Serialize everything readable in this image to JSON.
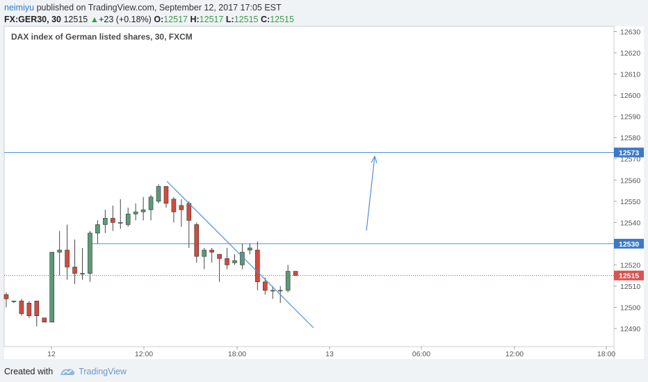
{
  "header": {
    "author": "neimiyu",
    "published_text": "published on TradingView.com, September 12, 2017 17:05 EST",
    "symbol": "FX:GER30, 30",
    "price": "12515",
    "change": "+23 (+0.18%)",
    "o_label": "O:",
    "o_value": "12517",
    "h_label": "H:",
    "h_value": "12517",
    "l_label": "L:",
    "l_value": "12515",
    "c_label": "C:",
    "c_value": "12515"
  },
  "footer": {
    "created_with": "Created with",
    "brand": "TradingView"
  },
  "colors": {
    "up": "#5b9a79",
    "down": "#d24b3e",
    "line": "#4f8fd6",
    "price_line": "#c0392b",
    "axis_text": "#555555"
  },
  "chart_data": {
    "type": "candlestick",
    "title": "DAX index of German listed shares, 30, FXCM",
    "x_ticks": [
      "12",
      "12:00",
      "18:00",
      "13",
      "06:00",
      "12:00",
      "18:00"
    ],
    "ylim": [
      12484,
      12632
    ],
    "y_ticks": [
      12490,
      12500,
      12510,
      12520,
      12530,
      12540,
      12550,
      12560,
      12570,
      12580,
      12590,
      12600,
      12610,
      12620,
      12630
    ],
    "candles": [
      {
        "o": 12506,
        "h": 12507,
        "l": 12500,
        "c": 12504
      },
      {
        "o": 12503,
        "h": 12503,
        "l": 12502,
        "c": 12503
      },
      {
        "o": 12503,
        "h": 12504,
        "l": 12496,
        "c": 12497
      },
      {
        "o": 12502,
        "h": 12503,
        "l": 12495,
        "c": 12496
      },
      {
        "o": 12503,
        "h": 12503,
        "l": 12491,
        "c": 12496
      },
      {
        "o": 12495,
        "h": 12495,
        "l": 12493,
        "c": 12493
      },
      {
        "o": 12493,
        "h": 12526,
        "l": 12493,
        "c": 12526
      },
      {
        "o": 12526,
        "h": 12536,
        "l": 12515,
        "c": 12527
      },
      {
        "o": 12527,
        "h": 12539,
        "l": 12513,
        "c": 12519
      },
      {
        "o": 12519,
        "h": 12532,
        "l": 12511,
        "c": 12516
      },
      {
        "o": 12516,
        "h": 12528,
        "l": 12513,
        "c": 12516
      },
      {
        "o": 12516,
        "h": 12536,
        "l": 12512,
        "c": 12535
      },
      {
        "o": 12535,
        "h": 12541,
        "l": 12530,
        "c": 12539
      },
      {
        "o": 12539,
        "h": 12546,
        "l": 12535,
        "c": 12542
      },
      {
        "o": 12542,
        "h": 12548,
        "l": 12536,
        "c": 12540
      },
      {
        "o": 12540,
        "h": 12551,
        "l": 12537,
        "c": 12540
      },
      {
        "o": 12539,
        "h": 12547,
        "l": 12538,
        "c": 12544
      },
      {
        "o": 12544,
        "h": 12549,
        "l": 12541,
        "c": 12545
      },
      {
        "o": 12545,
        "h": 12552,
        "l": 12541,
        "c": 12546
      },
      {
        "o": 12546,
        "h": 12553,
        "l": 12541,
        "c": 12552
      },
      {
        "o": 12550,
        "h": 12558,
        "l": 12549,
        "c": 12557
      },
      {
        "o": 12557,
        "h": 12557,
        "l": 12547,
        "c": 12549
      },
      {
        "o": 12551,
        "h": 12552,
        "l": 12540,
        "c": 12545
      },
      {
        "o": 12548,
        "h": 12551,
        "l": 12538,
        "c": 12546
      },
      {
        "o": 12549,
        "h": 12550,
        "l": 12528,
        "c": 12541
      },
      {
        "o": 12539,
        "h": 12540,
        "l": 12521,
        "c": 12524
      },
      {
        "o": 12524,
        "h": 12528,
        "l": 12518,
        "c": 12527
      },
      {
        "o": 12527,
        "h": 12528,
        "l": 12521,
        "c": 12526
      },
      {
        "o": 12525,
        "h": 12525,
        "l": 12512,
        "c": 12523
      },
      {
        "o": 12523,
        "h": 12528,
        "l": 12518,
        "c": 12520
      },
      {
        "o": 12521,
        "h": 12525,
        "l": 12520,
        "c": 12522
      },
      {
        "o": 12520,
        "h": 12530,
        "l": 12518,
        "c": 12526
      },
      {
        "o": 12527,
        "h": 12530,
        "l": 12525,
        "c": 12528
      },
      {
        "o": 12527,
        "h": 12531,
        "l": 12508,
        "c": 12512
      },
      {
        "o": 12512,
        "h": 12514,
        "l": 12506,
        "c": 12508
      },
      {
        "o": 12508,
        "h": 12510,
        "l": 12504,
        "c": 12508
      },
      {
        "o": 12508,
        "h": 12510,
        "l": 12502,
        "c": 12508
      },
      {
        "o": 12508,
        "h": 12520,
        "l": 12507,
        "c": 12517
      },
      {
        "o": 12517,
        "h": 12517,
        "l": 12515,
        "c": 12515
      }
    ],
    "horizontal_lines": [
      {
        "value": 12573,
        "label": "12573"
      },
      {
        "value": 12530,
        "label": "12530"
      }
    ],
    "last_price": {
      "value": 12515,
      "label": "12515"
    }
  }
}
